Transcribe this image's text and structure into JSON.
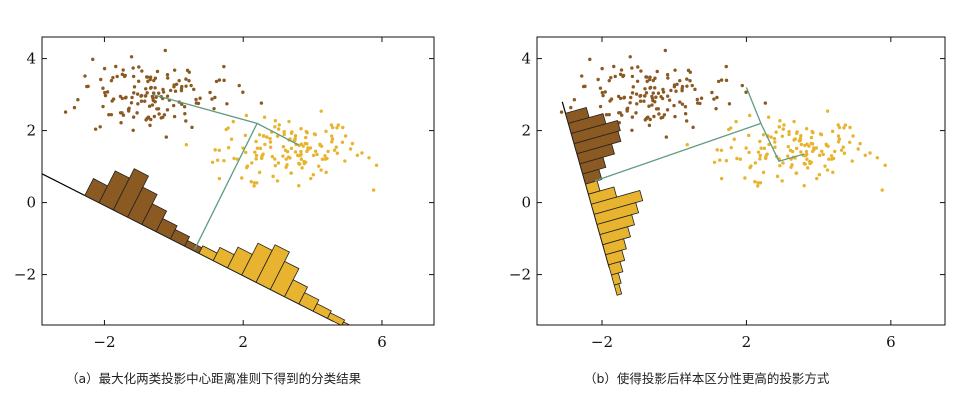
{
  "chart_data": [
    {
      "type": "scatter",
      "panel": "a",
      "caption": "（a）最大化两类投影中心距离准则下得到的分类结果",
      "xlim": [
        -3.8,
        7.5
      ],
      "ylim": [
        -3.4,
        4.6
      ],
      "xticks": [
        -2,
        2,
        6
      ],
      "yticks": [
        -2,
        0,
        2,
        4
      ],
      "xtick_labels": [
        "−2",
        "2",
        "6"
      ],
      "ytick_labels": [
        "−2",
        "0",
        "2",
        "4"
      ],
      "grid": false,
      "colors": {
        "class1": "#8B5A23",
        "class2": "#E8B430",
        "projection_line": "#000000",
        "connector": "#5E9C82"
      },
      "class_centers": [
        {
          "x": -0.8,
          "y": 3.0
        },
        {
          "x": 3.2,
          "y": 1.6
        }
      ],
      "projection_line": [
        {
          "x": -3.8,
          "y": 0.8
        },
        {
          "x": 4.6,
          "y": -3.3
        }
      ],
      "connector": [
        {
          "x": 0.6,
          "y": -1.3
        },
        {
          "x": 2.4,
          "y": 2.2
        },
        {
          "x": -0.6,
          "y": 3.0
        },
        {
          "x": 2.4,
          "y": 2.2
        },
        {
          "x": 3.6,
          "y": 1.6
        }
      ],
      "histogram_class1": [
        0.45,
        0.85,
        1.1,
        0.8,
        0.55,
        0.35,
        0.25,
        0.15
      ],
      "histogram_class2": [
        0.2,
        0.35,
        0.55,
        0.85,
        1.0,
        0.75,
        0.45,
        0.3,
        0.2,
        0.15,
        0.1
      ]
    },
    {
      "type": "scatter",
      "panel": "b",
      "caption": "（b）使得投影后样本区分性更高的投影方式",
      "xlim": [
        -3.8,
        7.5
      ],
      "ylim": [
        -3.4,
        4.6
      ],
      "xticks": [
        -2,
        2,
        6
      ],
      "yticks": [
        -2,
        0,
        2,
        4
      ],
      "xtick_labels": [
        "−2",
        "2",
        "6"
      ],
      "ytick_labels": [
        "−2",
        "0",
        "2",
        "4"
      ],
      "grid": false,
      "colors": {
        "class1": "#8B5A23",
        "class2": "#E8B430",
        "projection_line": "#000000",
        "connector": "#5E9C82"
      },
      "class_centers": [
        {
          "x": -0.8,
          "y": 3.0
        },
        {
          "x": 3.2,
          "y": 1.6
        }
      ],
      "projection_line": [
        {
          "x": -3.1,
          "y": 2.8
        },
        {
          "x": -1.8,
          "y": -1.8
        }
      ],
      "connector": [
        {
          "x": -2.2,
          "y": 0.6
        },
        {
          "x": 2.4,
          "y": 2.2
        },
        {
          "x": 2.0,
          "y": 3.2
        },
        {
          "x": 2.4,
          "y": 2.2
        },
        {
          "x": 2.9,
          "y": 1.15
        },
        {
          "x": 3.6,
          "y": 1.35
        }
      ],
      "histogram_class1": [
        0.45,
        0.75,
        1.0,
        0.95,
        0.75,
        0.5,
        0.35
      ],
      "histogram_class2": [
        0.25,
        0.55,
        1.05,
        0.9,
        0.75,
        0.6,
        0.45,
        0.35,
        0.25,
        0.15,
        0.1
      ]
    }
  ]
}
